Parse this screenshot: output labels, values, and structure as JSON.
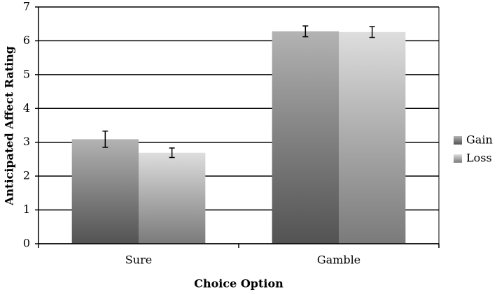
{
  "chart_data": {
    "type": "bar",
    "x_label": "Choice Option",
    "y_label": "Anticipated Affect Rating",
    "categories": [
      "Sure",
      "Gamble"
    ],
    "series": [
      {
        "name": "Gain",
        "color": "#8a8a8a",
        "values": [
          3.09,
          6.28
        ],
        "errors": [
          0.24,
          0.16
        ]
      },
      {
        "name": "Loss",
        "color": "#cccccc",
        "values": [
          2.69,
          6.26
        ],
        "errors": [
          0.14,
          0.16
        ]
      }
    ],
    "ylim": [
      0,
      7
    ],
    "yticks": [
      0,
      1,
      2,
      3,
      4,
      5,
      6,
      7
    ],
    "grid": true,
    "legend": "right"
  }
}
